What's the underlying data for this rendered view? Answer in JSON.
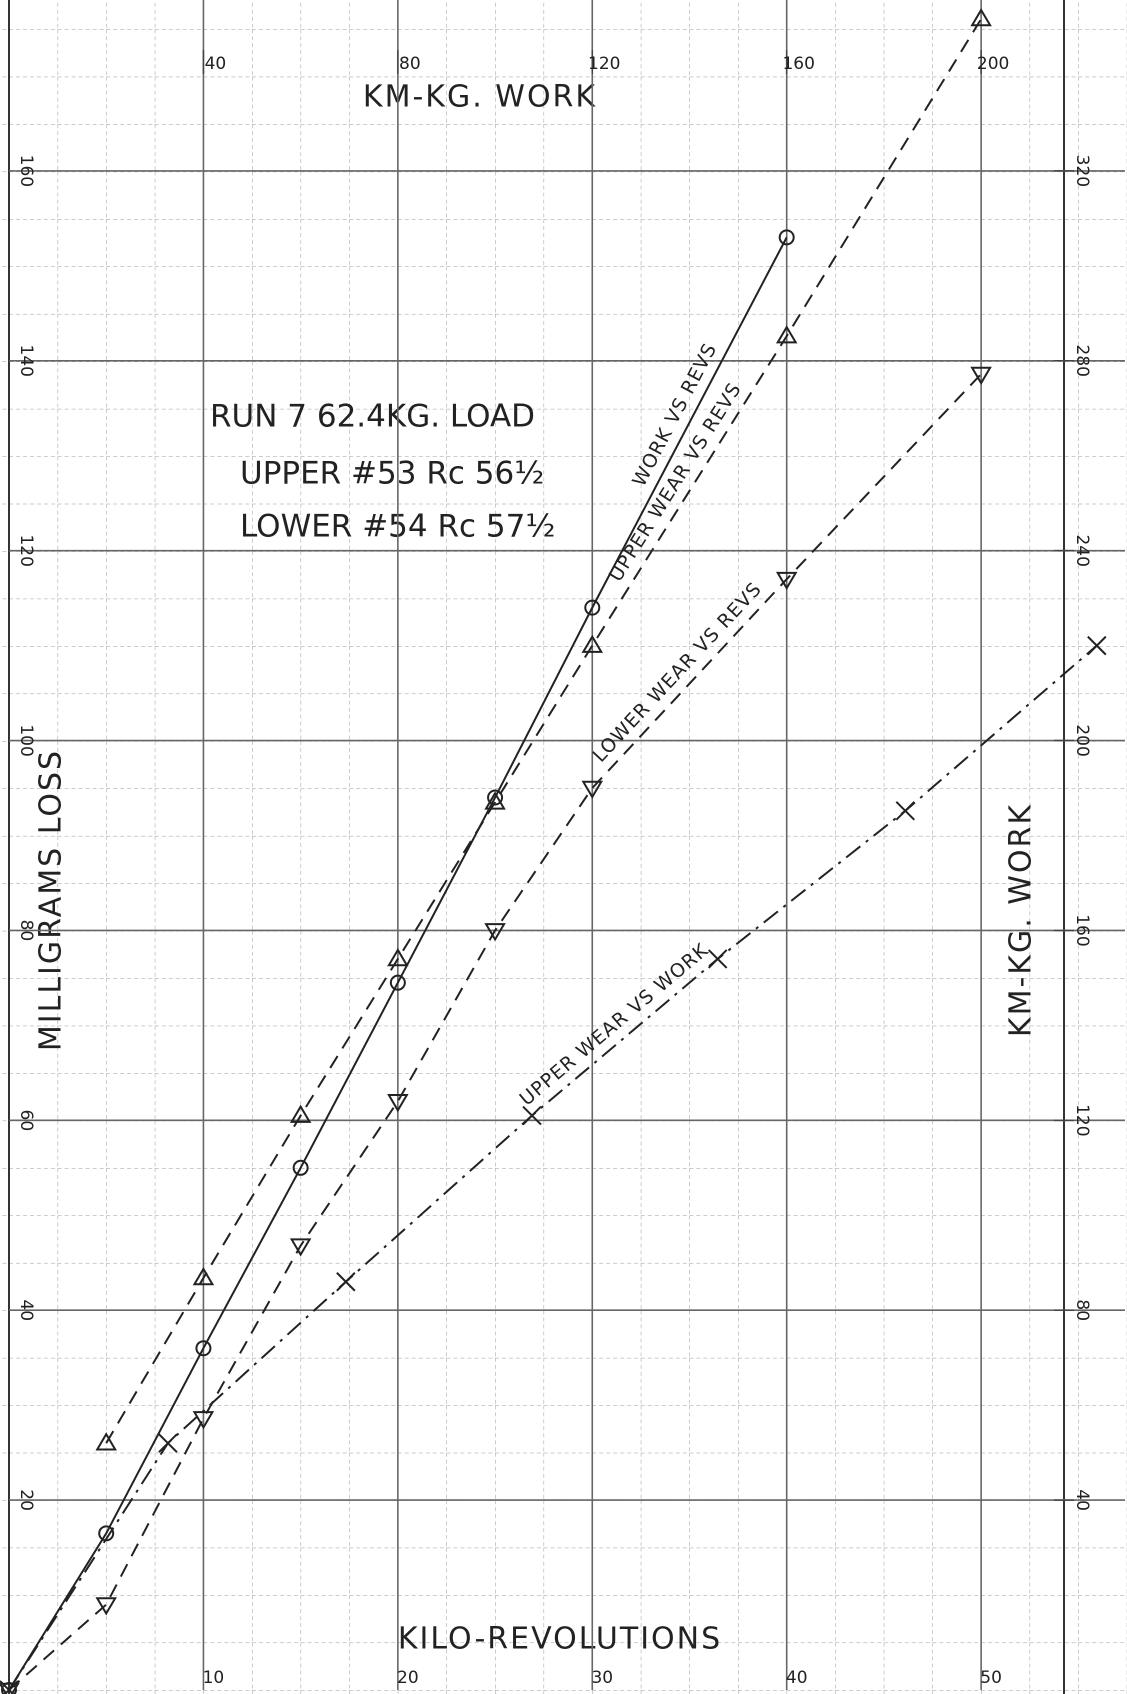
{
  "chart_data": {
    "type": "line",
    "title": "RUN 7 62.4KG. LOAD",
    "annotations": [
      "UPPER #53 Rc 56½",
      "LOWER #54 Rc 57½"
    ],
    "xlabel": "KILO-REVOLUTIONS",
    "x2label": "KM-KG. WORK",
    "ylabel": "MILLIGRAMS LOSS",
    "y2label": "KM-KG. WORK",
    "xlim": [
      0,
      57.4
    ],
    "xticks": [
      10,
      20,
      30,
      40,
      50
    ],
    "x2lim": [
      0,
      229.6
    ],
    "x2ticks": [
      40,
      80,
      120,
      160,
      200
    ],
    "ylim": [
      0,
      178
    ],
    "yticks": [
      20,
      40,
      60,
      80,
      100,
      120,
      140,
      160
    ],
    "y2lim": [
      0,
      356
    ],
    "y2ticks": [
      40,
      80,
      120,
      160,
      200,
      240,
      280,
      320
    ],
    "grid": true,
    "series": [
      {
        "name": "WORK VS REVS",
        "color": "#222222",
        "marker": "circle",
        "dash": "solid",
        "axis": "y2",
        "x": [
          0,
          5,
          10,
          15,
          20,
          25,
          30,
          40
        ],
        "values": [
          0,
          33,
          72,
          110,
          149,
          188,
          228,
          306
        ]
      },
      {
        "name": "UPPER WEAR VS REVS",
        "color": "#222222",
        "marker": "triangle-up",
        "dash": "dashed",
        "x": [
          5,
          10,
          15,
          20,
          25,
          30,
          40,
          50
        ],
        "values": [
          26,
          43.4,
          60.5,
          77,
          93.5,
          110,
          142.6,
          176
        ]
      },
      {
        "name": "LOWER WEAR VS REVS",
        "color": "#222222",
        "marker": "triangle-down",
        "dash": "dashed",
        "x": [
          0,
          5,
          10,
          15,
          20,
          25,
          30,
          40,
          50
        ],
        "values": [
          0,
          9,
          28.6,
          46.8,
          62,
          80,
          95,
          117,
          138.6
        ]
      },
      {
        "name": "UPPER WEAR VS WORK",
        "color": "#222222",
        "marker": "x",
        "dash": "dashdot",
        "x_axis": "x2",
        "x": [
          0,
          32.7,
          69.3,
          107.6,
          145.8,
          184.4,
          223.8
        ],
        "values": [
          0,
          26,
          43,
          60.5,
          77,
          92.6,
          110
        ]
      }
    ]
  }
}
